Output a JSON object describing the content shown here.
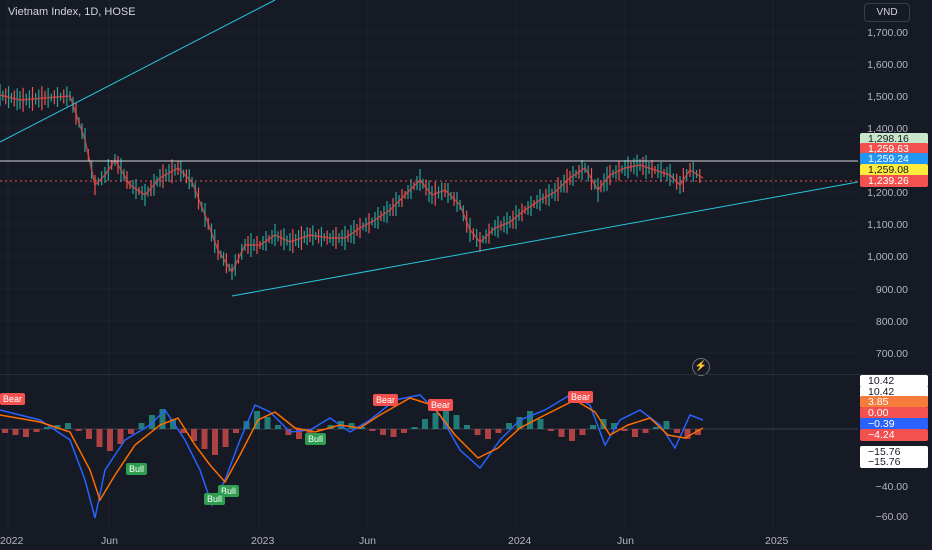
{
  "header": {
    "title": "Vietnam Index, 1D, HOSE",
    "currency": "VND"
  },
  "price_axis": [
    "1,700.00",
    "1,600.00",
    "1,500.00",
    "1,400.00",
    "1,200.00",
    "1,100.00",
    "1,000.00",
    "900.00",
    "800.00",
    "700.00"
  ],
  "price_tags": [
    {
      "text": "1,298.16",
      "bg": "#c8e6c9",
      "fg": "#161a25"
    },
    {
      "text": "1,259.63",
      "bg": "#f2514f",
      "fg": "#ffffff"
    },
    {
      "text": "1,259.24",
      "bg": "#2196f3",
      "fg": "#ffffff"
    },
    {
      "text": "1,259.08",
      "bg": "#ffeb3b",
      "fg": "#161a25"
    },
    {
      "text": "1,239.26",
      "bg": "#f2514f",
      "fg": "#ffffff"
    }
  ],
  "osc_axis": [
    "−40.00",
    "−60.00"
  ],
  "osc_tags": [
    {
      "text": "10.42",
      "bg": "#ffffff",
      "fg": "#161a25"
    },
    {
      "text": "10.42",
      "bg": "#ffffff",
      "fg": "#161a25"
    },
    {
      "text": "3.85",
      "bg": "#f57c3a",
      "fg": "#ffffff"
    },
    {
      "text": "0.00",
      "bg": "#f2514f",
      "fg": "#ffffff"
    },
    {
      "text": "−0.39",
      "bg": "#2962ff",
      "fg": "#ffffff"
    },
    {
      "text": "−4.24",
      "bg": "#f2514f",
      "fg": "#ffffff"
    },
    {
      "text": "−15.76",
      "bg": "#ffffff",
      "fg": "#161a25"
    },
    {
      "text": "−15.76",
      "bg": "#ffffff",
      "fg": "#161a25"
    }
  ],
  "time_axis": [
    "2022",
    "Jun",
    "2023",
    "Jun",
    "2024",
    "Jun",
    "2025"
  ],
  "signals": {
    "bear": "Bear",
    "bull": "Bull"
  },
  "icons": {
    "bolt": "lightning-icon"
  },
  "colors": {
    "background": "#161a25",
    "up": "#26a69a",
    "down": "#ef5350",
    "trend": "#26c6da",
    "macd": "#2962ff",
    "signal": "#ff6d00"
  }
}
